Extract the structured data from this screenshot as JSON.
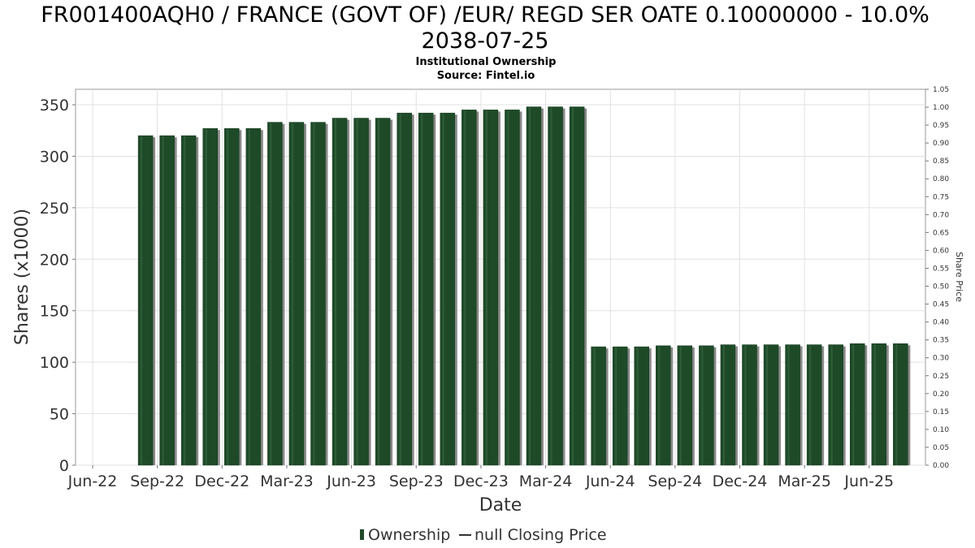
{
  "chart_data": {
    "type": "bar",
    "title_lines": [
      "FR001400AQH0 / FRANCE (GOVT OF) /EUR/ REGD SER OATE 0.10000000 - 10.0%",
      "2038-07-25"
    ],
    "subtitle": "Institutional Ownership",
    "source": "Source: Fintel.io",
    "xlabel": "Date",
    "ylabel": "Shares (x1000)",
    "ylabel_right": "Share Price",
    "ylim": [
      0,
      365
    ],
    "ylim_right": [
      0,
      1.05
    ],
    "yticks": [
      0,
      50,
      100,
      150,
      200,
      250,
      300,
      350
    ],
    "yticks_right": [
      "0.00",
      "0.05",
      "0.10",
      "0.15",
      "0.20",
      "0.25",
      "0.30",
      "0.35",
      "0.40",
      "0.45",
      "0.50",
      "0.55",
      "0.60",
      "0.65",
      "0.70",
      "0.75",
      "0.80",
      "0.85",
      "0.90",
      "0.95",
      "1.00",
      "1.05"
    ],
    "x_tick_labels": [
      "Jun-22",
      "Sep-22",
      "Dec-22",
      "Mar-23",
      "Jun-23",
      "Sep-23",
      "Dec-23",
      "Mar-24",
      "Jun-24",
      "Sep-24",
      "Dec-24",
      "Mar-25",
      "Jun-25"
    ],
    "grid": true,
    "legend_position": "bottom",
    "bar_color": "#1e4a28",
    "series": [
      {
        "name": "Ownership",
        "values": [
          320,
          320,
          320,
          327,
          327,
          327,
          333,
          333,
          333,
          337,
          337,
          337,
          342,
          342,
          342,
          345,
          345,
          345,
          348,
          348,
          348,
          115,
          115,
          115,
          116,
          116,
          116,
          117,
          117,
          117,
          117,
          117,
          117,
          118,
          118,
          118
        ]
      }
    ],
    "legend": [
      {
        "label": "Ownership",
        "kind": "bar"
      },
      {
        "label": "null Closing Price",
        "kind": "line"
      }
    ]
  }
}
